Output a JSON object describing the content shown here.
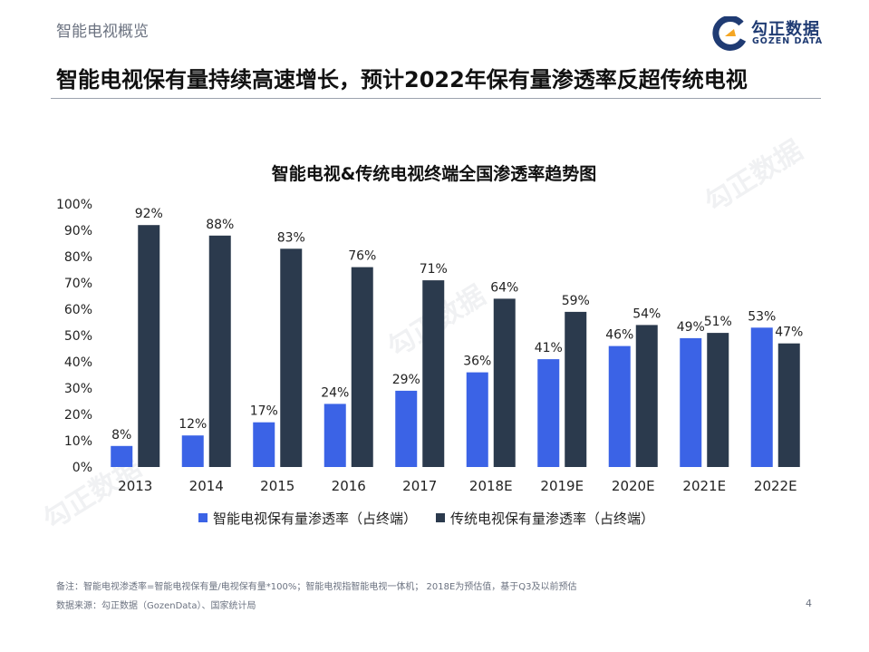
{
  "header": {
    "section_label": "智能电视概览",
    "headline": "智能电视保有量持续高速增长，预计2022年保有量渗透率反超传统电视"
  },
  "logo": {
    "name_cn": "勾正数据",
    "name_en": "GOZEN DATA"
  },
  "watermark": {
    "text_cn": "勾正数据",
    "text_en": "GOZEN DATA"
  },
  "colors": {
    "smart": "#3b63e6",
    "traditional": "#2b3a4d"
  },
  "chart_data": {
    "type": "bar",
    "title": "智能电视&传统电视终端全国渗透率趋势图",
    "categories": [
      "2013",
      "2014",
      "2015",
      "2016",
      "2017",
      "2018E",
      "2019E",
      "2020E",
      "2021E",
      "2022E"
    ],
    "series": [
      {
        "name": "智能电视保有量渗透率（占终端）",
        "values": [
          8,
          12,
          17,
          24,
          29,
          36,
          41,
          46,
          49,
          53
        ],
        "labels": [
          "8%",
          "12%",
          "17%",
          "24%",
          "29%",
          "36%",
          "41%",
          "46%",
          "49%",
          "53%"
        ]
      },
      {
        "name": "传统电视保有量渗透率（占终端）",
        "values": [
          92,
          88,
          83,
          76,
          71,
          64,
          59,
          54,
          51,
          47
        ],
        "labels": [
          "92%",
          "88%",
          "83%",
          "76%",
          "71%",
          "64%",
          "59%",
          "54%",
          "51%",
          "47%"
        ]
      }
    ],
    "ylim": [
      0,
      100
    ],
    "yticks": [
      "0%",
      "10%",
      "20%",
      "30%",
      "40%",
      "50%",
      "60%",
      "70%",
      "80%",
      "90%",
      "100%"
    ],
    "grid": false,
    "legend": "bottom"
  },
  "footer": {
    "note": "备注：智能电视渗透率=智能电视保有量/电视保有量*100%；智能电视指智能电视一体机；  2018E为预估值，基于Q3及以前预估",
    "source": "数据来源：勾正数据（GozenData）、国家统计局",
    "page_number": "4"
  }
}
